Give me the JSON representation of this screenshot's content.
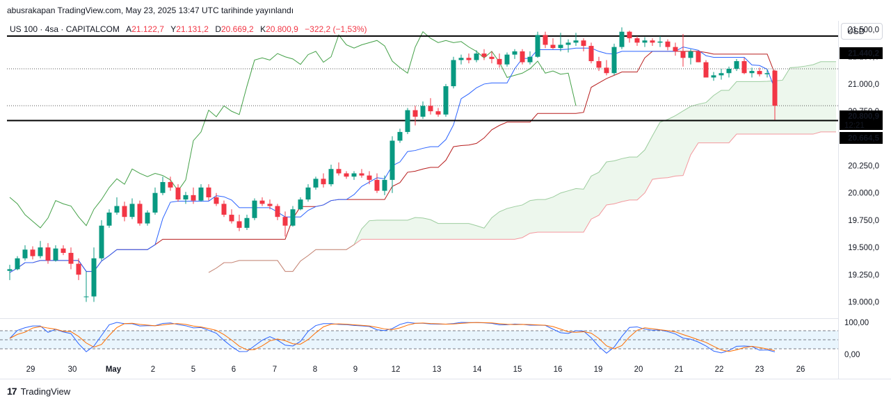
{
  "header": {
    "text": "abusrakapan TradingView.com, May 23, 2025 13:47 UTC tarihinde yayınlandı"
  },
  "legend": {
    "symbol": "US 100 · 4sa · CAPITALCOM",
    "a_label": "A",
    "a_value": "21.122,7",
    "y_label": "Y",
    "y_value": "21.131,2",
    "d_label": "D",
    "d_value": "20.669,2",
    "k_label": "K",
    "k_value": "20.800,9",
    "change": "−322,2 (−1,53%)"
  },
  "currency": "USD",
  "footer": {
    "brand": "TradingView"
  },
  "colors": {
    "up": "#089981",
    "down": "#f23645",
    "tenkan": "#2962ff",
    "kijun": "#b71c1c",
    "spanA": "#43a047",
    "spanB": "#f23645",
    "cloud": "#e8f5e9"
  },
  "price_labels": {
    "level_top": "21.440,2",
    "current": "20.800,9",
    "countdown": "12:21",
    "level_bottom": "20.664,5"
  },
  "chart_data": {
    "type": "candlestick",
    "y_ticks": [
      "21.500,0",
      "21.250,0",
      "21.000,0",
      "20.750,0",
      "20.500,0",
      "20.250,0",
      "20.000,0",
      "19.750,0",
      "19.500,0",
      "19.250,0",
      "19.000,0"
    ],
    "y_tick_values": [
      21500,
      21250,
      21000,
      20750,
      20500,
      20250,
      20000,
      19750,
      19500,
      19250,
      19000
    ],
    "ylim": [
      18850,
      21580
    ],
    "x_ticks": [
      "29",
      "30",
      "May",
      "2",
      "5",
      "6",
      "7",
      "8",
      "9",
      "12",
      "13",
      "14",
      "15",
      "16",
      "19",
      "20",
      "21",
      "22",
      "23",
      "26"
    ],
    "horizontal_levels": [
      21440.2,
      20664.5
    ],
    "current_price": 20800.9,
    "candles": [
      [
        19285,
        19340,
        19200,
        19300
      ],
      [
        19300,
        19420,
        19290,
        19400
      ],
      [
        19400,
        19520,
        19380,
        19480
      ],
      [
        19480,
        19510,
        19390,
        19420
      ],
      [
        19420,
        19560,
        19400,
        19500
      ],
      [
        19500,
        19540,
        19350,
        19380
      ],
      [
        19380,
        19520,
        19370,
        19490
      ],
      [
        19490,
        19520,
        19430,
        19450
      ],
      [
        19450,
        19500,
        19300,
        19350
      ],
      [
        19350,
        19400,
        19200,
        19250
      ],
      [
        19050,
        19280,
        19000,
        19050
      ],
      [
        19050,
        19500,
        19000,
        19400
      ],
      [
        19400,
        19750,
        19380,
        19700
      ],
      [
        19700,
        19850,
        19680,
        19820
      ],
      [
        19820,
        19960,
        19800,
        19880
      ],
      [
        19880,
        19920,
        19740,
        19780
      ],
      [
        19780,
        19950,
        19760,
        19900
      ],
      [
        19900,
        19930,
        19700,
        19720
      ],
      [
        19720,
        19840,
        19700,
        19820
      ],
      [
        19820,
        20050,
        19800,
        20000
      ],
      [
        20000,
        20150,
        19980,
        20100
      ],
      [
        20100,
        20150,
        20020,
        20050
      ],
      [
        20050,
        20080,
        19920,
        19940
      ],
      [
        19940,
        20010,
        19900,
        19980
      ],
      [
        19980,
        20050,
        19900,
        19930
      ],
      [
        19930,
        20080,
        19920,
        20050
      ],
      [
        20050,
        20080,
        19930,
        19960
      ],
      [
        19960,
        20000,
        19880,
        19900
      ],
      [
        19900,
        19930,
        19780,
        19800
      ],
      [
        19800,
        19850,
        19720,
        19740
      ],
      [
        19740,
        19800,
        19650,
        19680
      ],
      [
        19680,
        19800,
        19660,
        19770
      ],
      [
        19770,
        19950,
        19750,
        19930
      ],
      [
        19930,
        19960,
        19880,
        19900
      ],
      [
        19900,
        19940,
        19850,
        19880
      ],
      [
        19880,
        19900,
        19750,
        19780
      ],
      [
        19780,
        19830,
        19600,
        19700
      ],
      [
        19700,
        19880,
        19690,
        19850
      ],
      [
        19850,
        19960,
        19840,
        19940
      ],
      [
        19940,
        20080,
        19920,
        20050
      ],
      [
        20050,
        20150,
        20030,
        20130
      ],
      [
        20130,
        20180,
        20050,
        20080
      ],
      [
        20080,
        20260,
        20060,
        20220
      ],
      [
        20220,
        20280,
        20160,
        20180
      ],
      [
        20180,
        20200,
        20130,
        20150
      ],
      [
        20150,
        20200,
        20120,
        20180
      ],
      [
        20180,
        20220,
        20140,
        20160
      ],
      [
        20160,
        20200,
        20080,
        20120
      ],
      [
        20120,
        20180,
        20000,
        20020
      ],
      [
        20020,
        20160,
        19980,
        20120
      ],
      [
        20120,
        20520,
        20000,
        20480
      ],
      [
        20480,
        20590,
        20460,
        20560
      ],
      [
        20560,
        20780,
        20540,
        20760
      ],
      [
        20760,
        20800,
        20620,
        20700
      ],
      [
        20700,
        20840,
        20680,
        20800
      ],
      [
        20800,
        20870,
        20720,
        20750
      ],
      [
        20750,
        20780,
        20700,
        20720
      ],
      [
        20720,
        21000,
        20700,
        20980
      ],
      [
        20980,
        21250,
        20960,
        21220
      ],
      [
        21220,
        21270,
        21180,
        21240
      ],
      [
        21240,
        21280,
        21190,
        21220
      ],
      [
        21220,
        21310,
        21200,
        21280
      ],
      [
        21280,
        21320,
        21220,
        21250
      ],
      [
        21250,
        21300,
        21190,
        21230
      ],
      [
        21230,
        21280,
        21150,
        21180
      ],
      [
        21180,
        21290,
        21160,
        21270
      ],
      [
        21270,
        21320,
        21230,
        21300
      ],
      [
        21300,
        21320,
        21180,
        21200
      ],
      [
        21200,
        21300,
        21180,
        21250
      ],
      [
        21250,
        21480,
        21240,
        21450
      ],
      [
        21450,
        21480,
        21330,
        21360
      ],
      [
        21360,
        21420,
        21320,
        21330
      ],
      [
        21330,
        21470,
        21300,
        21360
      ],
      [
        21360,
        21410,
        21290,
        21380
      ],
      [
        21380,
        21470,
        21350,
        21400
      ],
      [
        21400,
        21420,
        21300,
        21350
      ],
      [
        21350,
        21380,
        21190,
        21210
      ],
      [
        21210,
        21250,
        21120,
        21150
      ],
      [
        21150,
        21220,
        21080,
        21100
      ],
      [
        21100,
        21370,
        21080,
        21340
      ],
      [
        21340,
        21520,
        21320,
        21480
      ],
      [
        21480,
        21490,
        21380,
        21420
      ],
      [
        21420,
        21440,
        21350,
        21380
      ],
      [
        21380,
        21430,
        21340,
        21400
      ],
      [
        21400,
        21420,
        21350,
        21380
      ],
      [
        21380,
        21440,
        21340,
        21390
      ],
      [
        21390,
        21410,
        21310,
        21340
      ],
      [
        21340,
        21380,
        21260,
        21300
      ],
      [
        21300,
        21460,
        21160,
        21240
      ],
      [
        21240,
        21320,
        21180,
        21300
      ],
      [
        21300,
        21310,
        21200,
        21200
      ],
      [
        21200,
        21220,
        21060,
        21060
      ],
      [
        21060,
        21110,
        21030,
        21080
      ],
      [
        21080,
        21140,
        21040,
        21100
      ],
      [
        21100,
        21160,
        21060,
        21140
      ],
      [
        21140,
        21230,
        21120,
        21210
      ],
      [
        21210,
        21240,
        21090,
        21100
      ],
      [
        21100,
        21150,
        21060,
        21120
      ],
      [
        21120,
        21150,
        21070,
        21090
      ],
      [
        21090,
        21130,
        21060,
        21100
      ],
      [
        21122.7,
        21131.2,
        20669.2,
        20800.9
      ]
    ],
    "indicators": [
      "Ichimoku Cloud",
      "Stochastic RSI"
    ],
    "stoch_ticks": [
      "100,00",
      "0,00"
    ]
  }
}
